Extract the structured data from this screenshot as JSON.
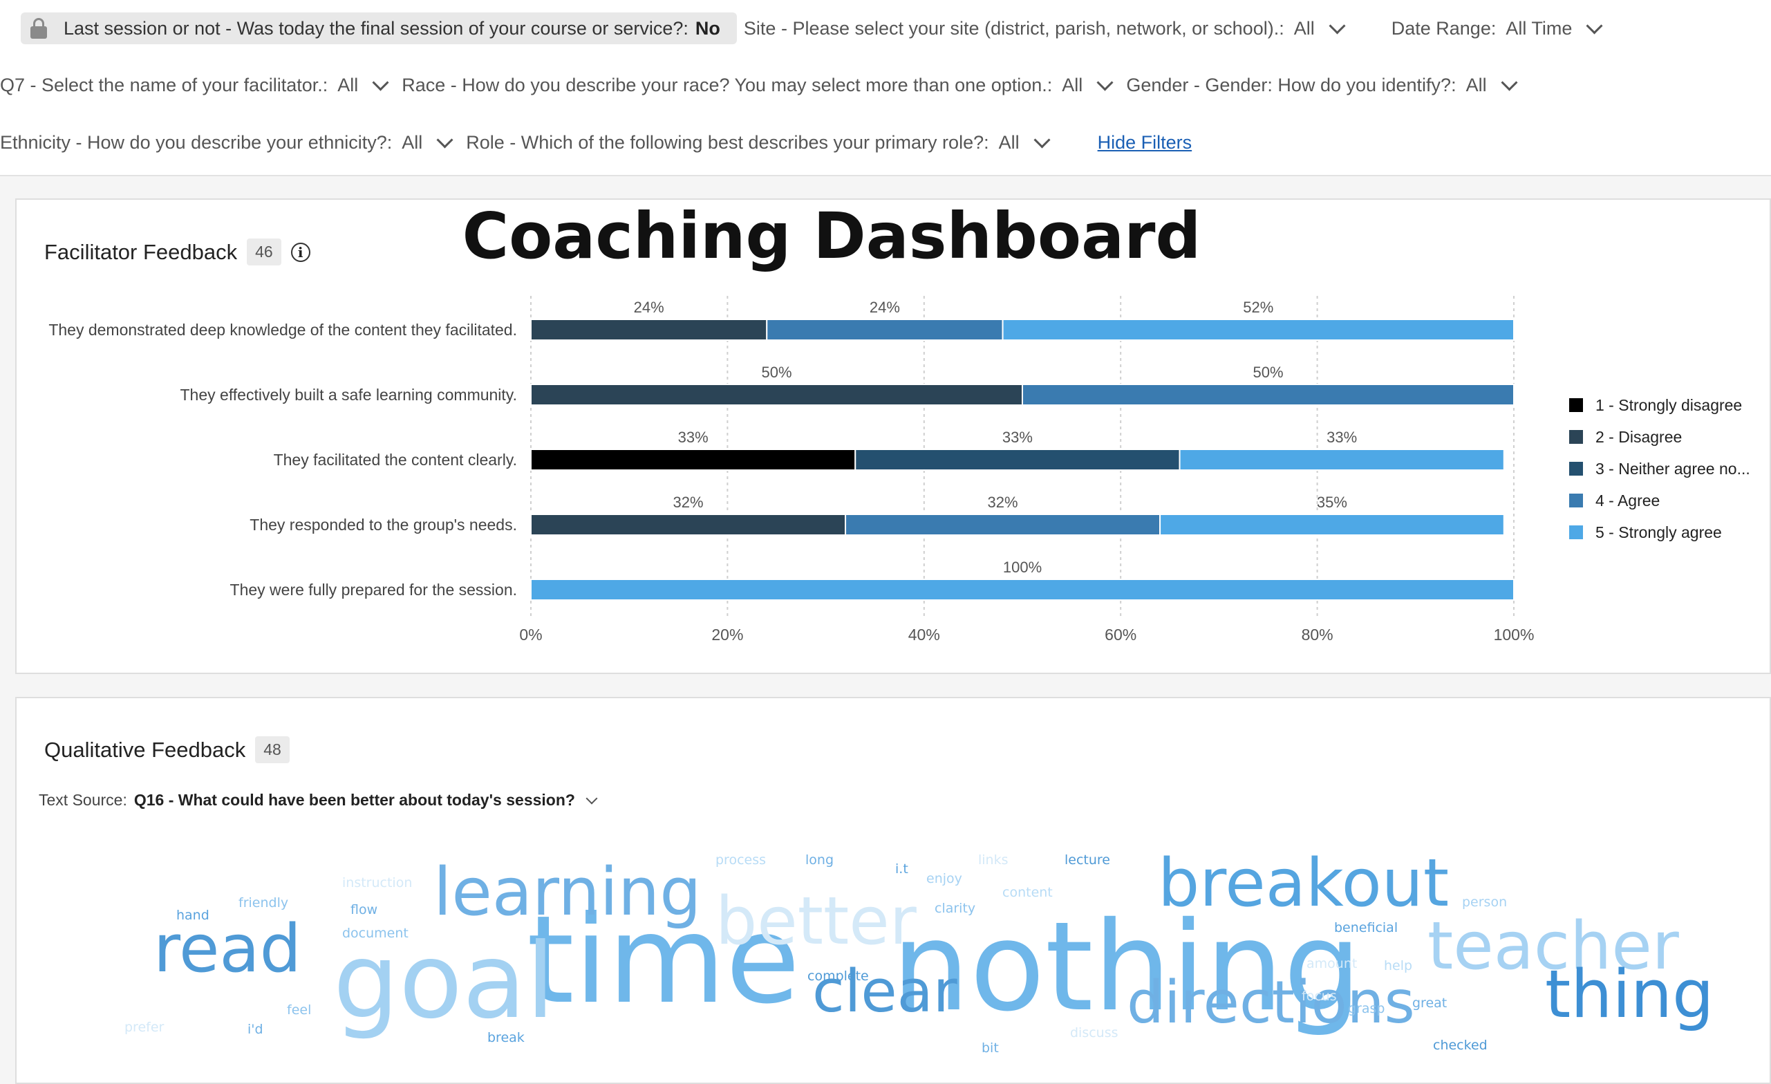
{
  "filters": {
    "row1": [
      {
        "label": "Last session or not - Was today the final session of your course or service?:",
        "value": "No",
        "locked": true
      },
      {
        "label": "Site - Please select your site (district, parish, network, or school).:",
        "value": "All"
      },
      {
        "label": "Date Range:",
        "value": "All Time"
      }
    ],
    "row2": [
      {
        "label": "Q7 - Select the name of your facilitator.:",
        "value": "All"
      },
      {
        "label": "Race - How do you describe your race? You may select more than one option.:",
        "value": "All"
      },
      {
        "label": "Gender - Gender: How do you identify?:",
        "value": "All"
      }
    ],
    "row3": [
      {
        "label": "Ethnicity - How do you describe your ethnicity?:",
        "value": "All"
      },
      {
        "label": "Role - Which of the following best describes your primary role?:",
        "value": "All"
      }
    ],
    "hide_filters": "Hide Filters"
  },
  "dashboard_title": "Coaching Dashboard",
  "facilitator": {
    "title": "Facilitator Feedback",
    "count": "46"
  },
  "chart_data": {
    "type": "bar",
    "orientation": "horizontal-stacked-100",
    "categories": [
      "They demonstrated deep knowledge of the content they facilitated.",
      "They effectively built a safe learning community.",
      "They facilitated the content clearly.",
      "They responded to the group's needs.",
      "They were fully prepared for the session."
    ],
    "series": [
      {
        "name": "1 - Strongly disagree",
        "color": "#000000",
        "values": [
          0,
          0,
          33,
          0,
          0
        ]
      },
      {
        "name": "2 - Disagree",
        "color": "#2b4456",
        "values": [
          24,
          50,
          0,
          32,
          0
        ]
      },
      {
        "name": "3 - Neither agree no...",
        "color": "#24506f",
        "values": [
          0,
          0,
          33,
          0,
          0
        ]
      },
      {
        "name": "4 - Agree",
        "color": "#3a7bb0",
        "values": [
          24,
          50,
          0,
          32,
          0
        ]
      },
      {
        "name": "5 - Strongly agree",
        "color": "#4ea8e6",
        "values": [
          52,
          0,
          33,
          35,
          100
        ]
      }
    ],
    "xlim": [
      0,
      100
    ],
    "xticks": [
      "0%",
      "20%",
      "40%",
      "60%",
      "80%",
      "100%"
    ],
    "legend_position": "right",
    "grid": true
  },
  "qualitative": {
    "title": "Qualitative Feedback",
    "count": "48",
    "source_label": "Text Source:",
    "source_value": "Q16 - What could have been better about today's session?"
  },
  "word_cloud": [
    {
      "text": "nothing",
      "color": "#6fb7ea",
      "size": 178
    },
    {
      "text": "time",
      "color": "#6fb7ea",
      "size": 175
    },
    {
      "text": "goal",
      "color": "#a3d1f2",
      "size": 150
    },
    {
      "text": "breakout",
      "color": "#55a5e0",
      "size": 95
    },
    {
      "text": "learning",
      "color": "#6fb0e4",
      "size": 95
    },
    {
      "text": "read",
      "color": "#4f9ad6",
      "size": 95
    },
    {
      "text": "teacher",
      "color": "#a6d2f3",
      "size": 95
    },
    {
      "text": "better",
      "color": "#d4e9f8",
      "size": 95
    },
    {
      "text": "thing",
      "color": "#3d8fd4",
      "size": 95
    },
    {
      "text": "clear",
      "color": "#4f9ad6",
      "size": 85
    },
    {
      "text": "directions",
      "color": "#6fb0e4",
      "size": 85
    },
    {
      "text": "process",
      "color": "#b8dcf6",
      "size": 19
    },
    {
      "text": "long",
      "color": "#6fb0e4",
      "size": 19
    },
    {
      "text": "i.t",
      "color": "#5aa3de",
      "size": 19
    },
    {
      "text": "enjoy",
      "color": "#a6d2f3",
      "size": 19
    },
    {
      "text": "links",
      "color": "#d4e9f8",
      "size": 19
    },
    {
      "text": "lecture",
      "color": "#4f9ad6",
      "size": 19
    },
    {
      "text": "content",
      "color": "#b8dcf6",
      "size": 19
    },
    {
      "text": "clarity",
      "color": "#8cc3ed",
      "size": 19
    },
    {
      "text": "person",
      "color": "#a6d2f3",
      "size": 19
    },
    {
      "text": "beneficial",
      "color": "#5aa3de",
      "size": 19
    },
    {
      "text": "amount",
      "color": "#d4e9f8",
      "size": 19
    },
    {
      "text": "help",
      "color": "#b8dcf6",
      "size": 19
    },
    {
      "text": "focus",
      "color": "#d4e9f8",
      "size": 19
    },
    {
      "text": "grasp",
      "color": "#8cc3ed",
      "size": 19
    },
    {
      "text": "great",
      "color": "#6fb0e4",
      "size": 19
    },
    {
      "text": "instruction",
      "color": "#d4e9f8",
      "size": 19
    },
    {
      "text": "friendly",
      "color": "#8cc3ed",
      "size": 19
    },
    {
      "text": "hand",
      "color": "#5aa3de",
      "size": 19
    },
    {
      "text": "flow",
      "color": "#6fb0e4",
      "size": 19
    },
    {
      "text": "document",
      "color": "#8cc3ed",
      "size": 19
    },
    {
      "text": "complete",
      "color": "#4f9ad6",
      "size": 19
    },
    {
      "text": "feel",
      "color": "#8cc3ed",
      "size": 19
    },
    {
      "text": "prefer",
      "color": "#d4e9f8",
      "size": 19
    },
    {
      "text": "i'd",
      "color": "#6fb0e4",
      "size": 19
    },
    {
      "text": "break",
      "color": "#5aa3de",
      "size": 19
    },
    {
      "text": "bit",
      "color": "#6fb0e4",
      "size": 19
    },
    {
      "text": "discuss",
      "color": "#d4e9f8",
      "size": 19
    },
    {
      "text": "checked",
      "color": "#4f9ad6",
      "size": 19
    }
  ]
}
